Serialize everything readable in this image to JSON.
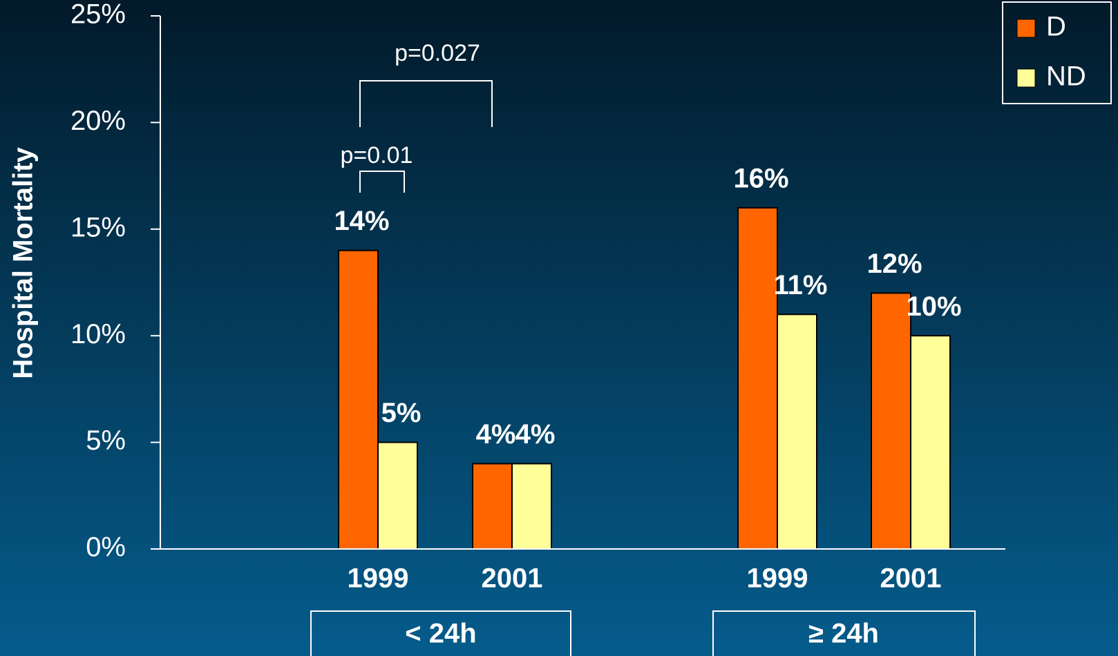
{
  "chart_data": {
    "type": "bar",
    "y_label": "Hospital Mortality",
    "categories": [
      "1999",
      "2001",
      "1999",
      "2001"
    ],
    "group_labels": [
      "< 24h",
      "≥ 24h"
    ],
    "series": [
      {
        "name": "D",
        "color": "#ff6600",
        "values": [
          14,
          4,
          16,
          12
        ],
        "value_labels": [
          "14%",
          "4%",
          "16%",
          "12%"
        ]
      },
      {
        "name": "ND",
        "color": "#ffff99",
        "values": [
          5,
          4,
          11,
          10
        ],
        "value_labels": [
          "5%",
          "4%",
          "11%",
          "10%"
        ]
      }
    ],
    "ylim": [
      0,
      25
    ],
    "yticks": [
      {
        "value": 0,
        "label": "0%"
      },
      {
        "value": 5,
        "label": "5%"
      },
      {
        "value": 10,
        "label": "10%"
      },
      {
        "value": 15,
        "label": "15%"
      },
      {
        "value": 20,
        "label": "20%"
      },
      {
        "value": 25,
        "label": "25%"
      }
    ],
    "annotations": [
      "p=0.027",
      "p=0.01"
    ],
    "grid": false,
    "legend": "top-right"
  }
}
